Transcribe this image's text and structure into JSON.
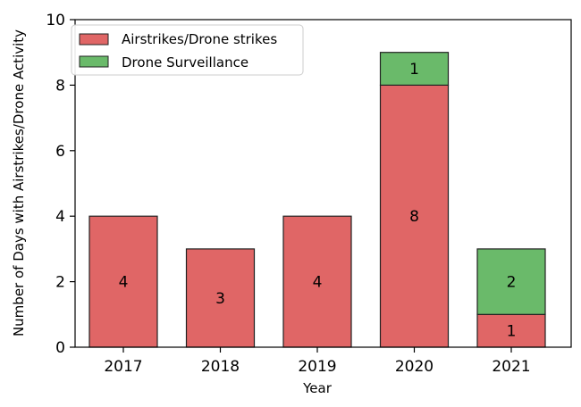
{
  "chart_data": {
    "type": "bar",
    "stacked": true,
    "title": "",
    "xlabel": "Year",
    "ylabel": "Number of Days with Airstrikes/Drone Activity",
    "ylim": [
      0,
      10
    ],
    "yticks": [
      "0",
      "2",
      "4",
      "6",
      "8",
      "10"
    ],
    "categories": [
      "2017",
      "2018",
      "2019",
      "2020",
      "2021"
    ],
    "series": [
      {
        "name": "Airstrikes/Drone strikes",
        "color": "#e06666",
        "values": [
          4,
          3,
          4,
          8,
          1
        ],
        "labels": [
          "4",
          "3",
          "4",
          "8",
          "1"
        ]
      },
      {
        "name": "Drone Surveillance",
        "color": "#6aba6a",
        "values": [
          0,
          0,
          0,
          1,
          2
        ],
        "labels": [
          "",
          "",
          "",
          "1",
          "2"
        ]
      }
    ],
    "legend_position": "top-left"
  }
}
